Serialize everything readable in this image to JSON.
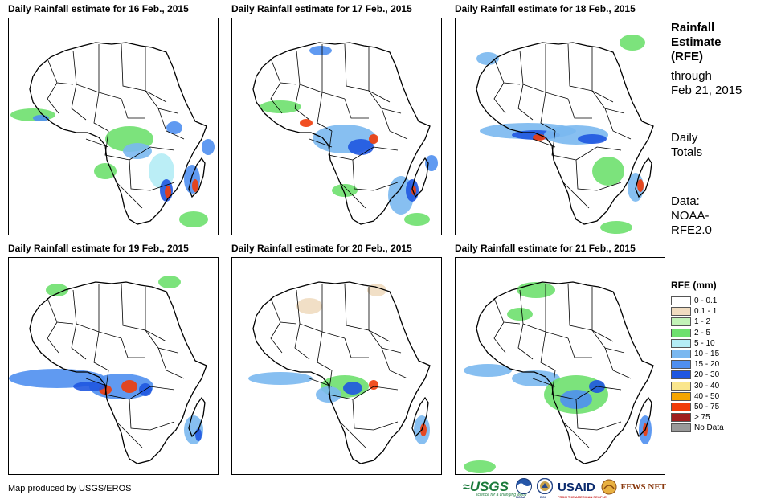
{
  "panels": [
    {
      "title": "Daily Rainfall estimate for 16 Feb., 2015"
    },
    {
      "title": "Daily Rainfall estimate for 17 Feb., 2015"
    },
    {
      "title": "Daily Rainfall estimate for 18 Feb., 2015"
    },
    {
      "title": "Daily Rainfall estimate for 19 Feb., 2015"
    },
    {
      "title": "Daily Rainfall estimate for 20 Feb., 2015"
    },
    {
      "title": "Daily Rainfall estimate for 21 Feb., 2015"
    }
  ],
  "sidebar": {
    "title_line1": "Rainfall",
    "title_line2": "Estimate",
    "title_line3": "(RFE)",
    "through_label": "through",
    "through_date": "Feb 21, 2015",
    "totals_line1": "Daily",
    "totals_line2": "Totals",
    "data_line1": "Data:",
    "data_line2": "NOAA-",
    "data_line3": "RFE2.0"
  },
  "legend": {
    "title": "RFE (mm)",
    "items": [
      {
        "label": "0 - 0.1",
        "color": "#ffffff"
      },
      {
        "label": "0.1 - 1",
        "color": "#f0dcc0"
      },
      {
        "label": "1 - 2",
        "color": "#c2f3b8"
      },
      {
        "label": "2 - 5",
        "color": "#6ee06e"
      },
      {
        "label": "5 - 10",
        "color": "#b4ecf5"
      },
      {
        "label": "10 - 15",
        "color": "#7ab8f0"
      },
      {
        "label": "15 - 20",
        "color": "#4f8ff0"
      },
      {
        "label": "20 - 30",
        "color": "#1f57e0"
      },
      {
        "label": "30 - 40",
        "color": "#fae68c"
      },
      {
        "label": "40 - 50",
        "color": "#f5a500"
      },
      {
        "label": "50 - 75",
        "color": "#f03c0a"
      },
      {
        "label": "> 75",
        "color": "#a01e1e"
      },
      {
        "label": "No Data",
        "color": "#999999"
      }
    ]
  },
  "credit": "Map produced by USGS/EROS",
  "logos": {
    "usgs": "USGS",
    "usgs_tagline": "science for a changing world",
    "noaa": "NOAA",
    "doi": "DOI",
    "usaid": "USAID",
    "usaid_tagline": "FROM THE AMERICAN PEOPLE",
    "fewsnet": "FEWS NET"
  }
}
